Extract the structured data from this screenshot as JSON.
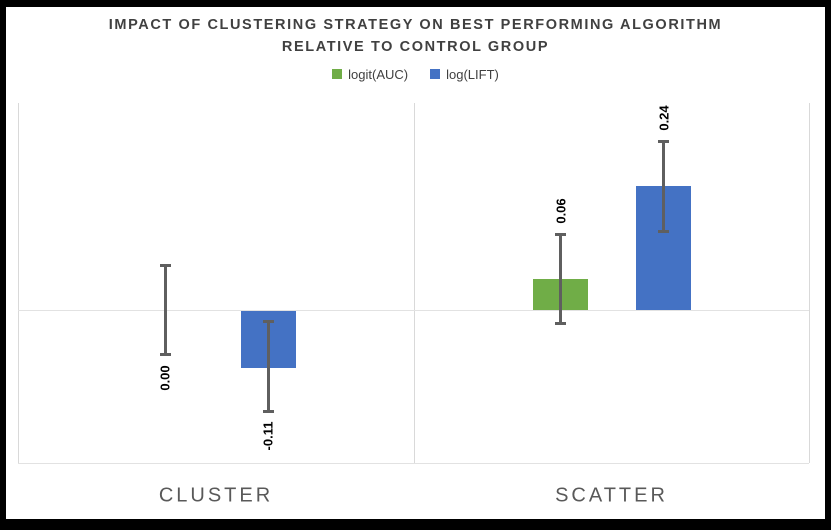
{
  "chart_data": {
    "type": "bar",
    "title": "IMPACT OF CLUSTERING STRATEGY ON BEST PERFORMING ALGORITHM RELATIVE TO CONTROL GROUP",
    "title_lines": [
      "IMPACT OF CLUSTERING STRATEGY ON BEST PERFORMING ALGORITHM",
      "RELATIVE TO CONTROL GROUP"
    ],
    "categories": [
      "CLUSTER",
      "SCATTER"
    ],
    "series": [
      {
        "name": "logit(AUC)",
        "color": "#70AD47",
        "values": [
          0.0,
          0.06
        ],
        "labels": [
          "0.00",
          "0.06"
        ],
        "error": [
          0.09,
          0.09
        ]
      },
      {
        "name": "log(LIFT)",
        "color": "#4472C4",
        "values": [
          -0.11,
          0.24
        ],
        "labels": [
          "-0.11",
          "0.24"
        ],
        "error": [
          0.09,
          0.09
        ]
      }
    ],
    "xlabel": "",
    "ylabel": "",
    "ylim": [
      -0.3,
      0.4
    ],
    "grid": "y-axis hidden; light vertical category separators and zero line only",
    "legend_position": "top",
    "error_bars": true,
    "colors": {
      "title_text": "#404040",
      "category_text": "#595959",
      "gridline": "#d9d9d9",
      "error_bar": "#5f5f5f",
      "value_label_text": "#000000"
    }
  }
}
